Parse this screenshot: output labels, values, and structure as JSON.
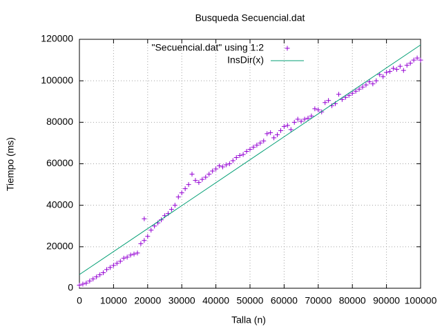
{
  "chart_data": {
    "type": "scatter",
    "title": "Busqueda Secuencial.dat",
    "x_label": "Talla (n)",
    "y_label": "Tiempo (ms)",
    "xlim": [
      0,
      100000
    ],
    "ylim": [
      0,
      120000
    ],
    "xticks": [
      0,
      10000,
      20000,
      30000,
      40000,
      50000,
      60000,
      70000,
      80000,
      90000,
      100000
    ],
    "yticks": [
      0,
      20000,
      40000,
      60000,
      80000,
      100000,
      120000
    ],
    "grid": true,
    "legend": "top",
    "series": [
      {
        "name": "\"Secuencial.dat\" using 1:2",
        "color": "#9400d3",
        "style": "points",
        "x": [
          0,
          1000,
          2000,
          3000,
          4000,
          5000,
          6000,
          7000,
          8000,
          9000,
          10000,
          11000,
          12000,
          13000,
          14000,
          15000,
          16000,
          17000,
          18000,
          19000,
          19000,
          20000,
          21000,
          22000,
          23000,
          24000,
          25000,
          26000,
          27000,
          28000,
          29000,
          30000,
          31000,
          32000,
          33000,
          34000,
          35000,
          36000,
          37000,
          38000,
          39000,
          40000,
          41000,
          42000,
          43000,
          44000,
          45000,
          46000,
          47000,
          48000,
          49000,
          50000,
          51000,
          52000,
          53000,
          54000,
          55000,
          56000,
          57000,
          58000,
          59000,
          60000,
          61000,
          62000,
          63000,
          64000,
          65000,
          66000,
          67000,
          68000,
          69000,
          70000,
          71000,
          72000,
          73000,
          74000,
          75000,
          76000,
          77000,
          78000,
          79000,
          80000,
          81000,
          82000,
          83000,
          84000,
          85000,
          86000,
          87000,
          88000,
          89000,
          90000,
          91000,
          92000,
          93000,
          94000,
          95000,
          96000,
          97000,
          98000,
          99000,
          100000
        ],
        "values": [
          1500,
          2000,
          2500,
          3500,
          4500,
          5500,
          6500,
          7500,
          9000,
          10000,
          11000,
          12000,
          13000,
          14500,
          15000,
          16000,
          16500,
          17000,
          21500,
          33500,
          23000,
          25000,
          28000,
          30000,
          31500,
          33000,
          35000,
          36000,
          38000,
          40000,
          44000,
          46000,
          48000,
          50000,
          55000,
          52000,
          51000,
          52500,
          53500,
          55000,
          56500,
          57500,
          59000,
          58500,
          59500,
          60000,
          61500,
          63000,
          64000,
          64500,
          66000,
          67000,
          68000,
          69000,
          70000,
          71000,
          74500,
          75000,
          72500,
          74000,
          76000,
          78000,
          78500,
          76500,
          80000,
          81500,
          80500,
          81500,
          82000,
          83000,
          86500,
          86000,
          85000,
          89500,
          90500,
          88000,
          89000,
          93500,
          91000,
          92000,
          93000,
          94000,
          95000,
          96000,
          97000,
          98000,
          99500,
          98500,
          100000,
          103000,
          102000,
          104000,
          104500,
          106000,
          105500,
          107000,
          105000,
          107500,
          108500,
          110000,
          111000,
          110000
        ]
      },
      {
        "name": "InsDir(x)",
        "color": "#009e73",
        "style": "line",
        "x": [
          0,
          100000
        ],
        "values": [
          6600,
          117300
        ]
      }
    ]
  }
}
